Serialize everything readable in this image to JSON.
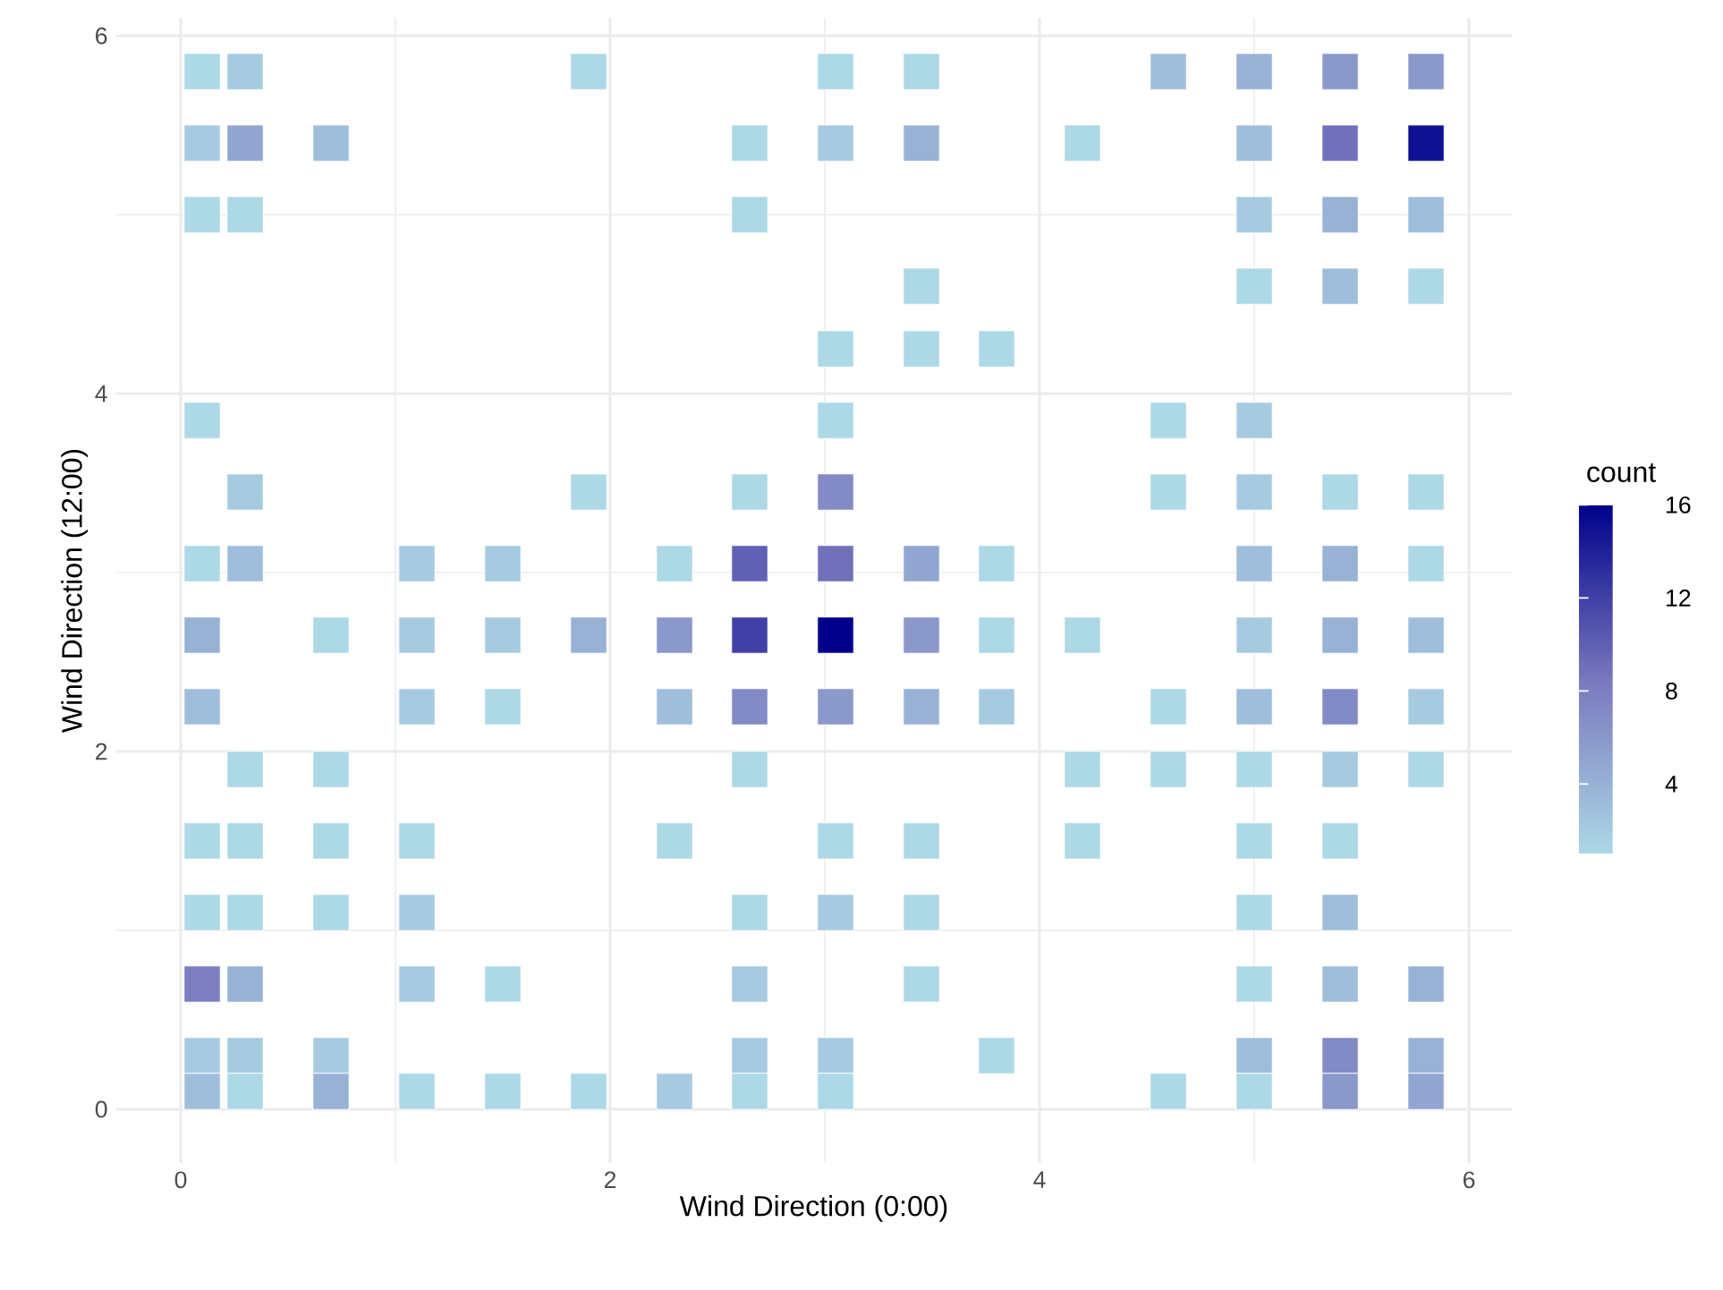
{
  "chart_data": {
    "type": "scatter",
    "marker": "square",
    "grid": true,
    "xlabel": "Wind Direction (0:00)",
    "ylabel": "Wind Direction (12:00)",
    "clabel": "count",
    "xlim": [
      -0.3,
      6.2
    ],
    "ylim": [
      -0.3,
      6.1
    ],
    "xticks": [
      0,
      2,
      4,
      6
    ],
    "yticks": [
      0,
      2,
      4,
      6
    ],
    "clim": [
      1,
      16
    ],
    "cticks": [
      4,
      8,
      12,
      16
    ],
    "x": [
      0.1,
      0.3,
      1.9,
      3.05,
      3.45,
      4.6,
      5.0,
      5.4,
      5.8,
      0.1,
      0.3,
      0.7,
      2.65,
      3.05,
      3.45,
      4.2,
      5.0,
      5.4,
      5.8,
      0.1,
      0.3,
      2.65,
      5.0,
      5.4,
      5.8,
      3.45,
      5.0,
      5.4,
      5.8,
      3.05,
      3.45,
      3.8,
      0.1,
      3.05,
      4.6,
      5.0,
      0.3,
      1.9,
      2.65,
      3.05,
      4.6,
      5.0,
      5.4,
      5.8,
      0.1,
      0.3,
      1.1,
      1.5,
      2.3,
      2.65,
      3.05,
      3.45,
      3.8,
      5.0,
      5.4,
      5.8,
      0.1,
      0.7,
      1.1,
      1.5,
      1.9,
      2.3,
      2.65,
      3.05,
      3.45,
      3.8,
      4.2,
      5.0,
      5.4,
      5.8,
      0.1,
      1.1,
      1.5,
      2.3,
      2.65,
      3.05,
      3.45,
      3.8,
      4.6,
      5.0,
      5.4,
      5.8,
      0.3,
      0.7,
      2.65,
      4.2,
      4.6,
      5.0,
      5.4,
      5.8,
      0.1,
      0.3,
      0.7,
      1.1,
      2.3,
      3.05,
      3.45,
      4.2,
      5.0,
      5.4,
      0.1,
      0.3,
      0.7,
      1.1,
      2.65,
      3.05,
      3.45,
      5.0,
      5.4,
      0.1,
      0.3,
      1.1,
      1.5,
      2.65,
      3.45,
      5.0,
      5.4,
      5.8,
      0.1,
      0.3,
      0.7,
      2.65,
      3.05,
      3.8,
      5.0,
      5.4,
      5.8,
      0.1,
      0.3,
      0.7,
      1.1,
      1.5,
      1.9,
      2.3,
      2.65,
      3.05,
      4.6,
      5.0,
      5.4,
      5.8
    ],
    "values": [
      5.8,
      5.8,
      5.8,
      5.8,
      5.8,
      5.8,
      5.8,
      5.8,
      5.8,
      5.4,
      5.4,
      5.4,
      5.4,
      5.4,
      5.4,
      5.4,
      5.4,
      5.4,
      5.4,
      5.0,
      5.0,
      5.0,
      5.0,
      5.0,
      5.0,
      4.6,
      4.6,
      4.6,
      4.6,
      4.25,
      4.25,
      4.25,
      3.85,
      3.85,
      3.85,
      3.85,
      3.45,
      3.45,
      3.45,
      3.45,
      3.45,
      3.45,
      3.45,
      3.45,
      3.05,
      3.05,
      3.05,
      3.05,
      3.05,
      3.05,
      3.05,
      3.05,
      3.05,
      3.05,
      3.05,
      3.05,
      2.65,
      2.65,
      2.65,
      2.65,
      2.65,
      2.65,
      2.65,
      2.65,
      2.65,
      2.65,
      2.65,
      2.65,
      2.65,
      2.65,
      2.25,
      2.25,
      2.25,
      2.25,
      2.25,
      2.25,
      2.25,
      2.25,
      2.25,
      2.25,
      2.25,
      2.25,
      1.9,
      1.9,
      1.9,
      1.9,
      1.9,
      1.9,
      1.9,
      1.9,
      1.5,
      1.5,
      1.5,
      1.5,
      1.5,
      1.5,
      1.5,
      1.5,
      1.5,
      1.5,
      1.1,
      1.1,
      1.1,
      1.1,
      1.1,
      1.1,
      1.1,
      1.1,
      1.1,
      0.7,
      0.7,
      0.7,
      0.7,
      0.7,
      0.7,
      0.7,
      0.7,
      0.7,
      0.3,
      0.3,
      0.3,
      0.3,
      0.3,
      0.3,
      0.3,
      0.3,
      0.3,
      0.1,
      0.1,
      0.1,
      0.1,
      0.1,
      0.1,
      0.1,
      0.1,
      0.1,
      0.1,
      0.1,
      0.1,
      0.1
    ],
    "cvalues": [
      1,
      2,
      1,
      1,
      1,
      3,
      4,
      6,
      6,
      2,
      5,
      3,
      1,
      2,
      4,
      1,
      3,
      9,
      15,
      1,
      1,
      1,
      2,
      4,
      3,
      1,
      1,
      3,
      1,
      1,
      1,
      1,
      1,
      1,
      1,
      2,
      2,
      1,
      1,
      7,
      1,
      2,
      1,
      1,
      1,
      3,
      2,
      2,
      1,
      10,
      9,
      5,
      1,
      3,
      4,
      1,
      4,
      1,
      2,
      2,
      4,
      6,
      12,
      16,
      6,
      1,
      1,
      2,
      4,
      3,
      3,
      2,
      1,
      3,
      7,
      6,
      4,
      2,
      1,
      3,
      7,
      2,
      1,
      1,
      1,
      1,
      1,
      1,
      2,
      1,
      1,
      1,
      1,
      1,
      1,
      1,
      1,
      1,
      1,
      1,
      1,
      1,
      1,
      2,
      1,
      2,
      1,
      1,
      3,
      8,
      4,
      2,
      1,
      2,
      1,
      1,
      3,
      4,
      2,
      2,
      2,
      2,
      2,
      1,
      3,
      7,
      4,
      3,
      1,
      4,
      1,
      1,
      1,
      2,
      1,
      1,
      1,
      1,
      6,
      5
    ]
  }
}
